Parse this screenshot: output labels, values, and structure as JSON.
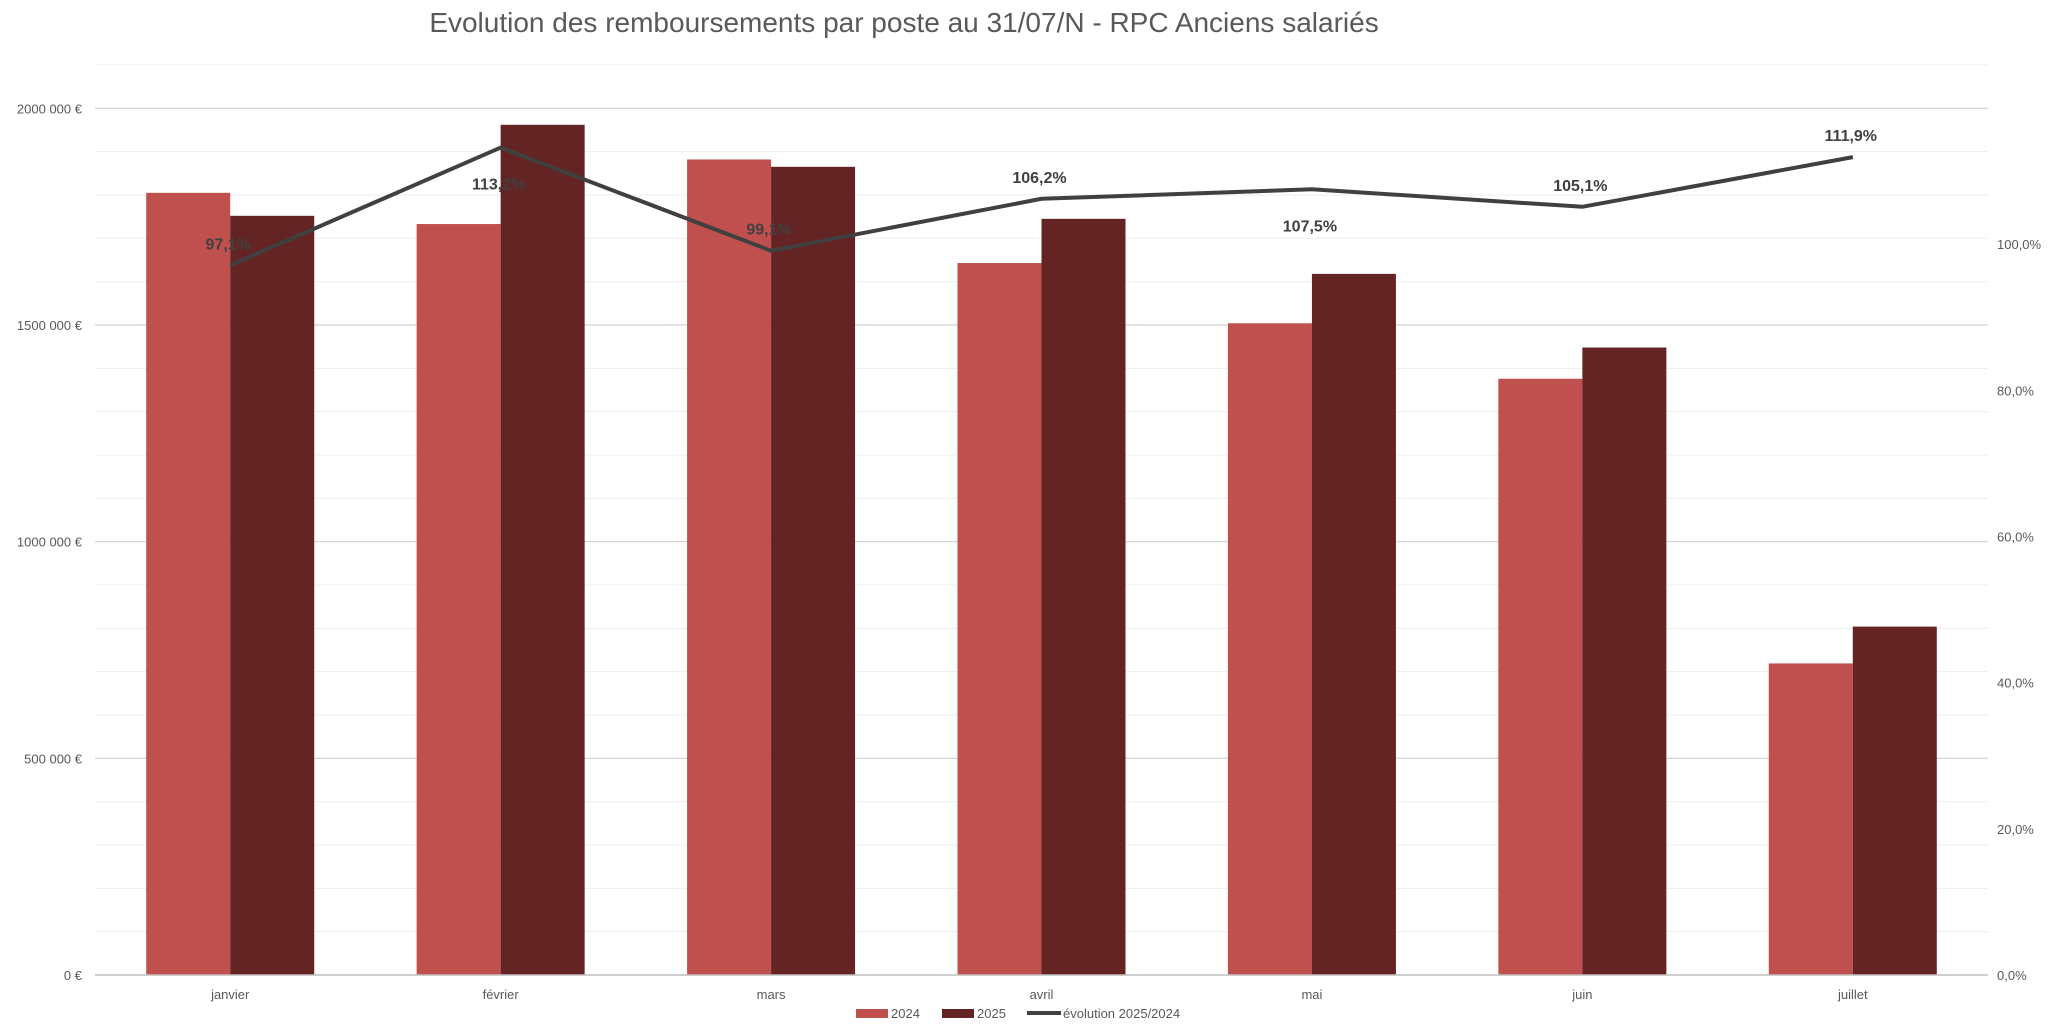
{
  "chart_data": {
    "type": "bar",
    "title": "Evolution des remboursements par poste au 31/07/N - RPC Anciens salariés",
    "categories": [
      "janvier",
      "février",
      "mars",
      "avril",
      "mai",
      "juin",
      "juillet"
    ],
    "series": [
      {
        "name": "2024",
        "type": "bar",
        "axis": "left",
        "color": "#C0504D",
        "values": [
          1805000,
          1733000,
          1882000,
          1643000,
          1504000,
          1376000,
          719000
        ]
      },
      {
        "name": "2025",
        "type": "bar",
        "axis": "left",
        "color": "#632423",
        "values": [
          1752000,
          1962000,
          1865000,
          1745000,
          1618000,
          1448000,
          804000
        ]
      },
      {
        "name": "évolution 2025/2024",
        "type": "line",
        "axis": "right",
        "color": "#404040",
        "values": [
          97.1,
          113.2,
          99.1,
          106.2,
          107.5,
          105.1,
          111.9
        ]
      }
    ],
    "data_labels": [
      "97,1%",
      "113,2%",
      "99,1%",
      "106,2%",
      "107,5%",
      "105,1%",
      "111,9%"
    ],
    "y_left": {
      "ticks": [
        0,
        500000,
        1000000,
        1500000,
        2000000
      ],
      "tick_labels": [
        "0 €",
        "500 000 €",
        "1000 000 €",
        "1500 000 €",
        "2000 000 €"
      ],
      "ylim": [
        0,
        2100000
      ]
    },
    "y_right": {
      "ticks": [
        0,
        20,
        40,
        60,
        80,
        100
      ],
      "tick_labels": [
        "0,0%",
        "20,0%",
        "40,0%",
        "60,0%",
        "80,0%",
        "100,0%"
      ],
      "ylim": [
        0,
        124.5
      ]
    },
    "grid": true,
    "legend_position": "bottom"
  }
}
